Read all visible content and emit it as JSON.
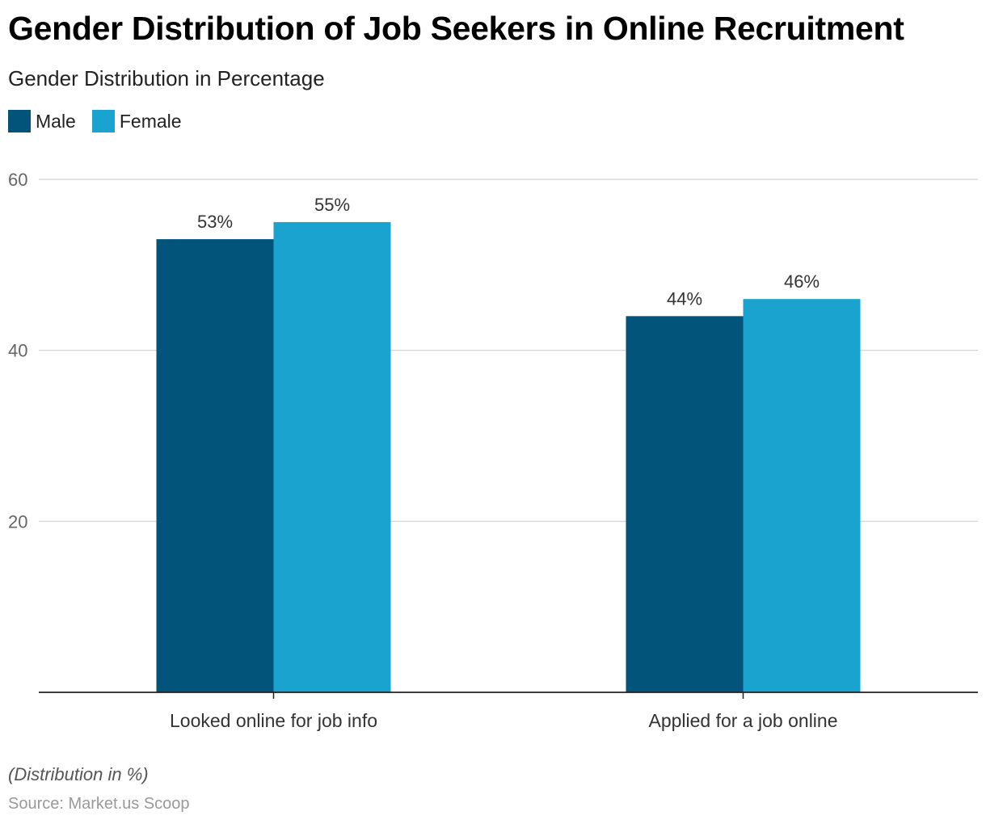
{
  "title": "Gender Distribution of Job Seekers in Online Recruitment",
  "subtitle": "Gender Distribution in Percentage",
  "note": "(Distribution in %)",
  "source": "Source: Market.us Scoop",
  "colors": {
    "male": "#02547a",
    "female": "#1aa3cf"
  },
  "chart_data": {
    "type": "bar",
    "title": "Gender Distribution of Job Seekers in Online Recruitment",
    "categories": [
      "Looked online for job info",
      "Applied for a job online"
    ],
    "series": [
      {
        "name": "Male",
        "values": [
          53,
          44
        ],
        "labels": [
          "53%",
          "44%"
        ]
      },
      {
        "name": "Female",
        "values": [
          55,
          46
        ],
        "labels": [
          "55%",
          "46%"
        ]
      }
    ],
    "ylim": [
      0,
      60
    ],
    "yticks": [
      20,
      40,
      60
    ],
    "grid": true,
    "legend": "top-left",
    "xlabel": "",
    "ylabel": ""
  }
}
